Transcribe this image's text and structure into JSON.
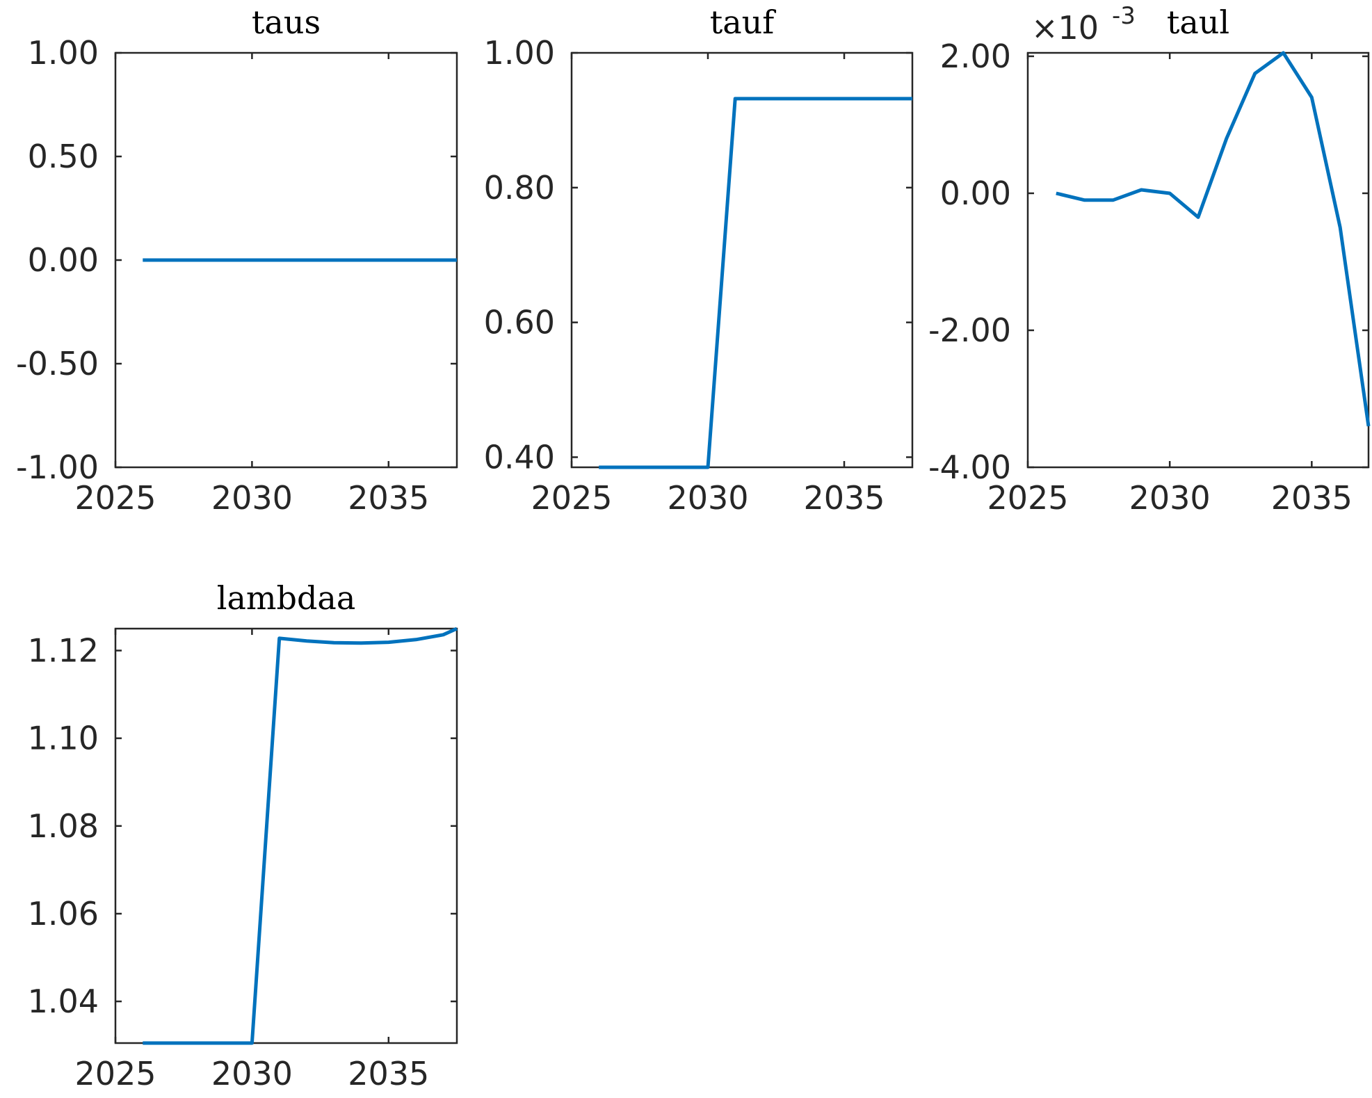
{
  "figure": {
    "line_color": "#0072BD",
    "axis_color": "#262626"
  },
  "chart_data": [
    {
      "type": "line",
      "title": "taus",
      "xlabel": "",
      "ylabel": "",
      "xlim": [
        2025,
        2037.5
      ],
      "ylim": [
        -1.0,
        1.0
      ],
      "x_ticks": [
        2025,
        2030,
        2035
      ],
      "x_tick_labels": [
        "2025",
        "2030",
        "2035"
      ],
      "y_ticks": [
        -1.0,
        -0.5,
        0.0,
        0.5,
        1.0
      ],
      "y_tick_labels": [
        "-1.00",
        "-0.50",
        "0.00",
        "0.50",
        "1.00"
      ],
      "exponent_label": "",
      "grid": false,
      "series": [
        {
          "x": [
            2026,
            2027,
            2028,
            2029,
            2030,
            2031,
            2032,
            2033,
            2034,
            2035,
            2036,
            2037,
            2037.5
          ],
          "y": [
            0,
            0,
            0,
            0,
            0,
            0,
            0,
            0,
            0,
            0,
            0,
            0,
            0
          ]
        }
      ]
    },
    {
      "type": "line",
      "title": "tauf",
      "xlabel": "",
      "ylabel": "",
      "xlim": [
        2025,
        2037.5
      ],
      "ylim": [
        0.385,
        1.0
      ],
      "x_ticks": [
        2025,
        2030,
        2035
      ],
      "x_tick_labels": [
        "2025",
        "2030",
        "2035"
      ],
      "y_ticks": [
        0.4,
        0.6,
        0.8,
        1.0
      ],
      "y_tick_labels": [
        "0.40",
        "0.60",
        "0.80",
        "1.00"
      ],
      "exponent_label": "",
      "grid": false,
      "series": [
        {
          "x": [
            2026,
            2027,
            2028,
            2029,
            2030,
            2031,
            2032,
            2033,
            2034,
            2035,
            2036,
            2037,
            2037.5
          ],
          "y": [
            0.385,
            0.385,
            0.385,
            0.385,
            0.385,
            0.932,
            0.932,
            0.932,
            0.932,
            0.932,
            0.932,
            0.932,
            0.932
          ]
        }
      ]
    },
    {
      "type": "line",
      "title": "taul",
      "xlabel": "",
      "ylabel": "",
      "xlim": [
        2025,
        2037
      ],
      "ylim": [
        -4.0,
        2.05
      ],
      "x_ticks": [
        2025,
        2030,
        2035
      ],
      "x_tick_labels": [
        "2025",
        "2030",
        "2035"
      ],
      "y_ticks": [
        -4.0,
        -2.0,
        0.0,
        2.0
      ],
      "y_tick_labels": [
        "-4.00",
        "-2.00",
        "0.00",
        "2.00"
      ],
      "exponent_label": "×10",
      "exponent_power": "-3",
      "grid": false,
      "series": [
        {
          "x": [
            2026,
            2027,
            2028,
            2029,
            2030,
            2031,
            2032,
            2033,
            2034,
            2035,
            2036,
            2037
          ],
          "y": [
            0.0,
            -0.1,
            -0.1,
            0.05,
            0.0,
            -0.35,
            0.8,
            1.75,
            2.05,
            1.4,
            -0.5,
            -3.4
          ]
        }
      ]
    },
    {
      "type": "line",
      "title": "lambdaa",
      "xlabel": "",
      "ylabel": "",
      "xlim": [
        2025,
        2037.5
      ],
      "ylim": [
        1.0305,
        1.125
      ],
      "x_ticks": [
        2025,
        2030,
        2035
      ],
      "x_tick_labels": [
        "2025",
        "2030",
        "2035"
      ],
      "y_ticks": [
        1.04,
        1.06,
        1.08,
        1.1,
        1.12
      ],
      "y_tick_labels": [
        "1.04",
        "1.06",
        "1.08",
        "1.10",
        "1.12"
      ],
      "exponent_label": "",
      "grid": false,
      "series": [
        {
          "x": [
            2026,
            2027,
            2028,
            2029,
            2030,
            2031,
            2032,
            2033,
            2034,
            2035,
            2036,
            2037,
            2037.5
          ],
          "y": [
            1.0305,
            1.0305,
            1.0305,
            1.0305,
            1.0305,
            1.1228,
            1.1222,
            1.1218,
            1.1217,
            1.1219,
            1.1225,
            1.1236,
            1.125
          ]
        }
      ]
    }
  ]
}
